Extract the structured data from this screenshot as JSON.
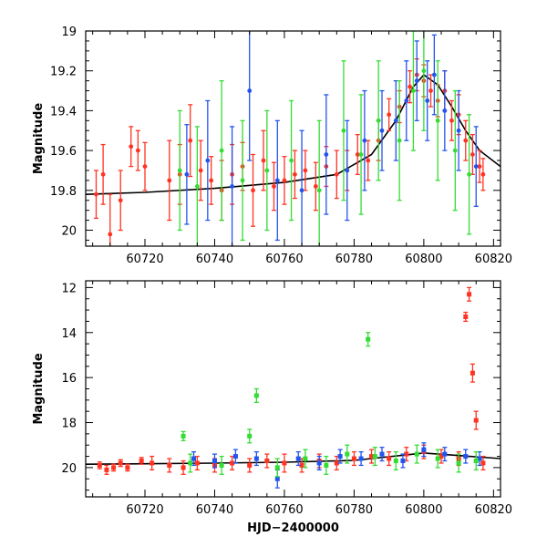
{
  "chart_data": [
    {
      "type": "scatter",
      "panel": "top",
      "ylabel": "Magnitude",
      "xlabel": "",
      "xlim": [
        60703,
        60822
      ],
      "ylim": [
        20.08,
        19.0
      ],
      "y_inverted": true,
      "x_ticks": [
        60720,
        60740,
        60760,
        60780,
        60800,
        60820
      ],
      "y_ticks": [
        19,
        19.2,
        19.4,
        19.6,
        19.8,
        20
      ],
      "y_tick_labels": [
        "19",
        "19.2",
        "19.4",
        "19.6",
        "19.8",
        "20"
      ],
      "series": [
        {
          "color": "#ff3322",
          "marker": "circle",
          "error_bars": true,
          "x": [
            60706,
            60708,
            60710,
            60713,
            60716,
            60718,
            60720,
            60727,
            60730,
            60733,
            60736,
            60739,
            60742,
            60745,
            60748,
            60751,
            60754,
            60757,
            60760,
            60763,
            60766,
            60769,
            60772,
            60775,
            60778,
            60781,
            60784,
            60787,
            60790,
            60793,
            60796,
            60798,
            60800,
            60802,
            60804,
            60806,
            60808,
            60810,
            60812,
            60814,
            60816,
            60817
          ],
          "y": [
            19.82,
            19.72,
            20.02,
            19.85,
            19.58,
            19.6,
            19.68,
            19.75,
            19.72,
            19.55,
            19.7,
            19.75,
            19.8,
            19.72,
            19.68,
            19.8,
            19.65,
            19.78,
            19.75,
            19.72,
            19.7,
            19.78,
            19.68,
            19.72,
            19.7,
            19.62,
            19.65,
            19.55,
            19.42,
            19.38,
            19.28,
            19.22,
            19.25,
            19.3,
            19.35,
            19.3,
            19.45,
            19.42,
            19.55,
            19.62,
            19.68,
            19.72
          ],
          "err": [
            0.12,
            0.15,
            0.2,
            0.15,
            0.1,
            0.1,
            0.12,
            0.2,
            0.15,
            0.18,
            0.15,
            0.12,
            0.15,
            0.15,
            0.12,
            0.18,
            0.15,
            0.12,
            0.12,
            0.12,
            0.1,
            0.12,
            0.1,
            0.12,
            0.1,
            0.1,
            0.1,
            0.1,
            0.08,
            0.08,
            0.08,
            0.08,
            0.08,
            0.08,
            0.08,
            0.1,
            0.1,
            0.1,
            0.1,
            0.1,
            0.08,
            0.08
          ]
        },
        {
          "color": "#2255ee",
          "marker": "circle",
          "error_bars": true,
          "x": [
            60732,
            60738,
            60745,
            60750,
            60758,
            60765,
            60772,
            60778,
            60783,
            60788,
            60792,
            60795,
            60798,
            60801,
            60803,
            60806,
            60810,
            60815
          ],
          "y": [
            19.72,
            19.65,
            19.78,
            19.3,
            19.75,
            19.8,
            19.62,
            19.7,
            19.55,
            19.5,
            19.45,
            19.35,
            19.25,
            19.35,
            19.22,
            19.4,
            19.5,
            19.68
          ],
          "err": [
            0.25,
            0.3,
            0.3,
            0.35,
            0.3,
            0.3,
            0.3,
            0.25,
            0.25,
            0.2,
            0.2,
            0.2,
            0.2,
            0.2,
            0.2,
            0.2,
            0.2,
            0.2
          ]
        },
        {
          "color": "#33dd33",
          "marker": "circle",
          "error_bars": true,
          "x": [
            60730,
            60735,
            60742,
            60748,
            60755,
            60762,
            60770,
            60777,
            60782,
            60787,
            60793,
            60797,
            60800,
            60804,
            60809,
            60813
          ],
          "y": [
            19.7,
            19.78,
            19.6,
            19.75,
            19.7,
            19.65,
            19.8,
            19.5,
            19.62,
            19.45,
            19.55,
            19.3,
            19.2,
            19.45,
            19.6,
            19.72
          ],
          "err": [
            0.3,
            0.3,
            0.35,
            0.3,
            0.3,
            0.3,
            0.35,
            0.35,
            0.3,
            0.3,
            0.3,
            0.3,
            0.3,
            0.3,
            0.3,
            0.3
          ]
        }
      ],
      "model_curve": {
        "color": "#000000",
        "x": [
          60703,
          60720,
          60740,
          60760,
          60775,
          60785,
          60792,
          60797,
          60800,
          60804,
          60808,
          60812,
          60816,
          60822
        ],
        "y": [
          19.82,
          19.81,
          19.79,
          19.76,
          19.72,
          19.62,
          19.45,
          19.28,
          19.22,
          19.27,
          19.38,
          19.5,
          19.6,
          19.68
        ]
      }
    },
    {
      "type": "scatter",
      "panel": "bottom",
      "ylabel": "Magnitude",
      "xlabel": "HJD−2400000",
      "xlim": [
        60703,
        60822
      ],
      "ylim": [
        21.3,
        11.7
      ],
      "y_inverted": true,
      "x_ticks": [
        60720,
        60740,
        60760,
        60780,
        60800,
        60820
      ],
      "y_ticks": [
        12,
        14,
        16,
        18,
        20
      ],
      "y_tick_labels": [
        "12",
        "14",
        "16",
        "18",
        "20"
      ],
      "series": [
        {
          "color": "#ff3322",
          "marker": "square",
          "error_bars": true,
          "x": [
            60707,
            60709,
            60711,
            60713,
            60715,
            60719,
            60722,
            60727,
            60731,
            60735,
            60740,
            60745,
            60750,
            60755,
            60760,
            60765,
            60770,
            60775,
            60780,
            60785,
            60790,
            60795,
            60800,
            60805,
            60810,
            60812,
            60813,
            60814,
            60815,
            60817
          ],
          "y": [
            19.9,
            20.1,
            20.0,
            19.8,
            20.0,
            19.7,
            19.8,
            19.9,
            20.0,
            19.8,
            19.9,
            19.8,
            19.9,
            19.7,
            19.8,
            19.9,
            19.7,
            19.8,
            19.6,
            19.5,
            19.6,
            19.4,
            19.3,
            19.5,
            19.6,
            13.3,
            12.3,
            15.8,
            17.9,
            19.8
          ],
          "err": [
            0.15,
            0.2,
            0.15,
            0.15,
            0.15,
            0.15,
            0.3,
            0.3,
            0.3,
            0.3,
            0.3,
            0.3,
            0.3,
            0.3,
            0.4,
            0.3,
            0.3,
            0.3,
            0.3,
            0.3,
            0.3,
            0.3,
            0.3,
            0.3,
            0.3,
            0.2,
            0.3,
            0.4,
            0.4,
            0.3
          ]
        },
        {
          "color": "#2255ee",
          "marker": "square",
          "error_bars": true,
          "x": [
            60734,
            60740,
            60746,
            60752,
            60758,
            60764,
            60770,
            60776,
            60782,
            60788,
            60794,
            60800,
            60806,
            60812,
            60816
          ],
          "y": [
            19.6,
            19.7,
            19.5,
            19.6,
            20.5,
            19.6,
            19.8,
            19.5,
            19.6,
            19.4,
            19.7,
            19.2,
            19.4,
            19.5,
            19.6
          ],
          "err": [
            0.3,
            0.3,
            0.3,
            0.3,
            0.4,
            0.3,
            0.3,
            0.3,
            0.3,
            0.3,
            0.3,
            0.3,
            0.3,
            0.3,
            0.3
          ]
        },
        {
          "color": "#33dd33",
          "marker": "square",
          "error_bars": true,
          "x": [
            60731,
            60733,
            60742,
            60750,
            60752,
            60758,
            60766,
            60772,
            60778,
            60784,
            60786,
            60792,
            60798,
            60804,
            60810,
            60815
          ],
          "y": [
            18.6,
            19.8,
            19.9,
            18.6,
            16.8,
            20.0,
            19.6,
            19.9,
            19.4,
            14.3,
            19.5,
            19.7,
            19.4,
            19.6,
            19.8,
            19.7
          ],
          "err": [
            0.2,
            0.4,
            0.4,
            0.3,
            0.3,
            0.4,
            0.4,
            0.4,
            0.4,
            0.3,
            0.4,
            0.4,
            0.4,
            0.4,
            0.4,
            0.4
          ]
        }
      ],
      "model_curve": {
        "color": "#000000",
        "x": [
          60703,
          60720,
          60740,
          60760,
          60780,
          60800,
          60822
        ],
        "y": [
          19.85,
          19.83,
          19.8,
          19.76,
          19.68,
          19.35,
          19.6
        ]
      }
    }
  ]
}
